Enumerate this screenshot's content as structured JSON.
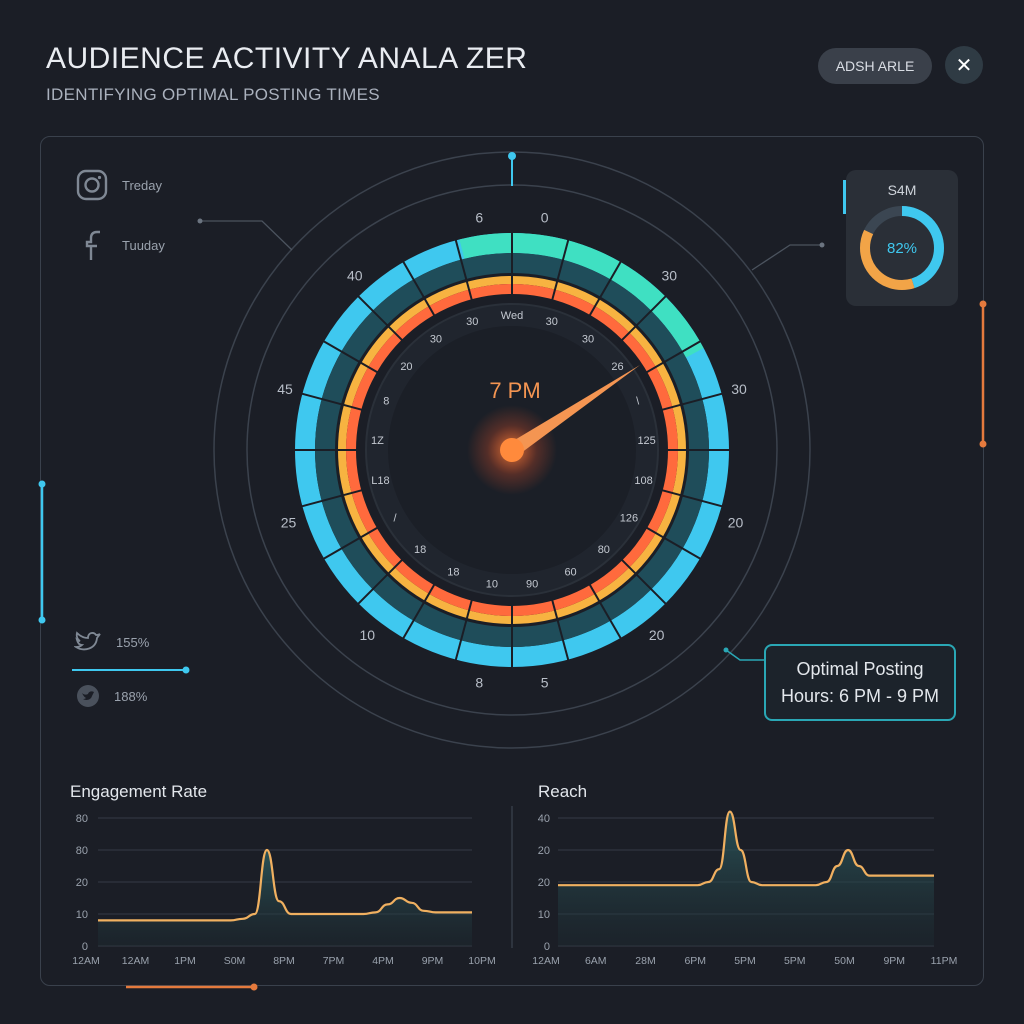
{
  "header": {
    "title": "AUDIENCE ACTIVITY ANALA ZER",
    "subtitle": "IDENTIFYING OPTIMAL POSTING TIMES",
    "share_label": "ADSH ARLE",
    "close_symbol": "✕"
  },
  "sidebar": {
    "items": [
      {
        "icon": "instagram-icon",
        "label": "Treday"
      },
      {
        "icon": "facebook-icon",
        "label": "Tuuday"
      },
      {
        "icon": "twitter-icon",
        "label": "155%"
      },
      {
        "icon": "bird-badge-icon",
        "label": "188%"
      }
    ]
  },
  "dial": {
    "center_time": "7 PM",
    "outer_labels": [
      "6",
      "0",
      "30",
      "30",
      "20",
      "20",
      "5",
      "8",
      "10",
      "25",
      "45",
      "40"
    ],
    "inner_labels": [
      "Wed",
      "30",
      "30",
      "26",
      "\\",
      "125",
      "108",
      "126",
      "80",
      "60",
      "90",
      "10",
      "18",
      "18",
      "/",
      "L18",
      "1Z",
      "8",
      "20",
      "30",
      "30"
    ],
    "colors": {
      "cyan": "#3fc8ef",
      "teal": "#3fe0c2",
      "orange": "#ff6a3d",
      "amber": "#f7b341",
      "needle": "#f49552"
    }
  },
  "donut": {
    "title": "S4M",
    "value_text": "82%",
    "value": 0.82
  },
  "callout": {
    "line1": "Optimal Posting",
    "line2": "Hours: 6 PM - 9 PM"
  },
  "chart_data": [
    {
      "type": "area",
      "title": "Engagement Rate",
      "y_ticks": [
        "80",
        "80",
        "20",
        "10",
        "0"
      ],
      "x_ticks": [
        "12AM",
        "12AM",
        "1PM",
        "S0M",
        "8PM",
        "7PM",
        "4PM",
        "9PM",
        "10PM"
      ],
      "series": [
        {
          "values": [
            16,
            16,
            16,
            16,
            16,
            16,
            16,
            16,
            16,
            16,
            16,
            16,
            17,
            20,
            60,
            28,
            20,
            20,
            20,
            20,
            20,
            20,
            20,
            21,
            26,
            30,
            27,
            22,
            21,
            21,
            21,
            21
          ]
        }
      ],
      "ylim": [
        0,
        80
      ]
    },
    {
      "type": "area",
      "title": "Reach",
      "y_ticks": [
        "40",
        "20",
        "20",
        "10",
        "0"
      ],
      "x_ticks": [
        "12AM",
        "6AM",
        "28M",
        "6PM",
        "5PM",
        "5PM",
        "50M",
        "9PM",
        "11PM"
      ],
      "series": [
        {
          "values": [
            19,
            19,
            19,
            19,
            19,
            19,
            19,
            19,
            19,
            19,
            19,
            19,
            19,
            19,
            20,
            24,
            42,
            30,
            20,
            19,
            19,
            19,
            19,
            19,
            19,
            20,
            25,
            30,
            25,
            22,
            22,
            22,
            22,
            22,
            22,
            22
          ]
        }
      ],
      "ylim": [
        0,
        40
      ]
    }
  ]
}
